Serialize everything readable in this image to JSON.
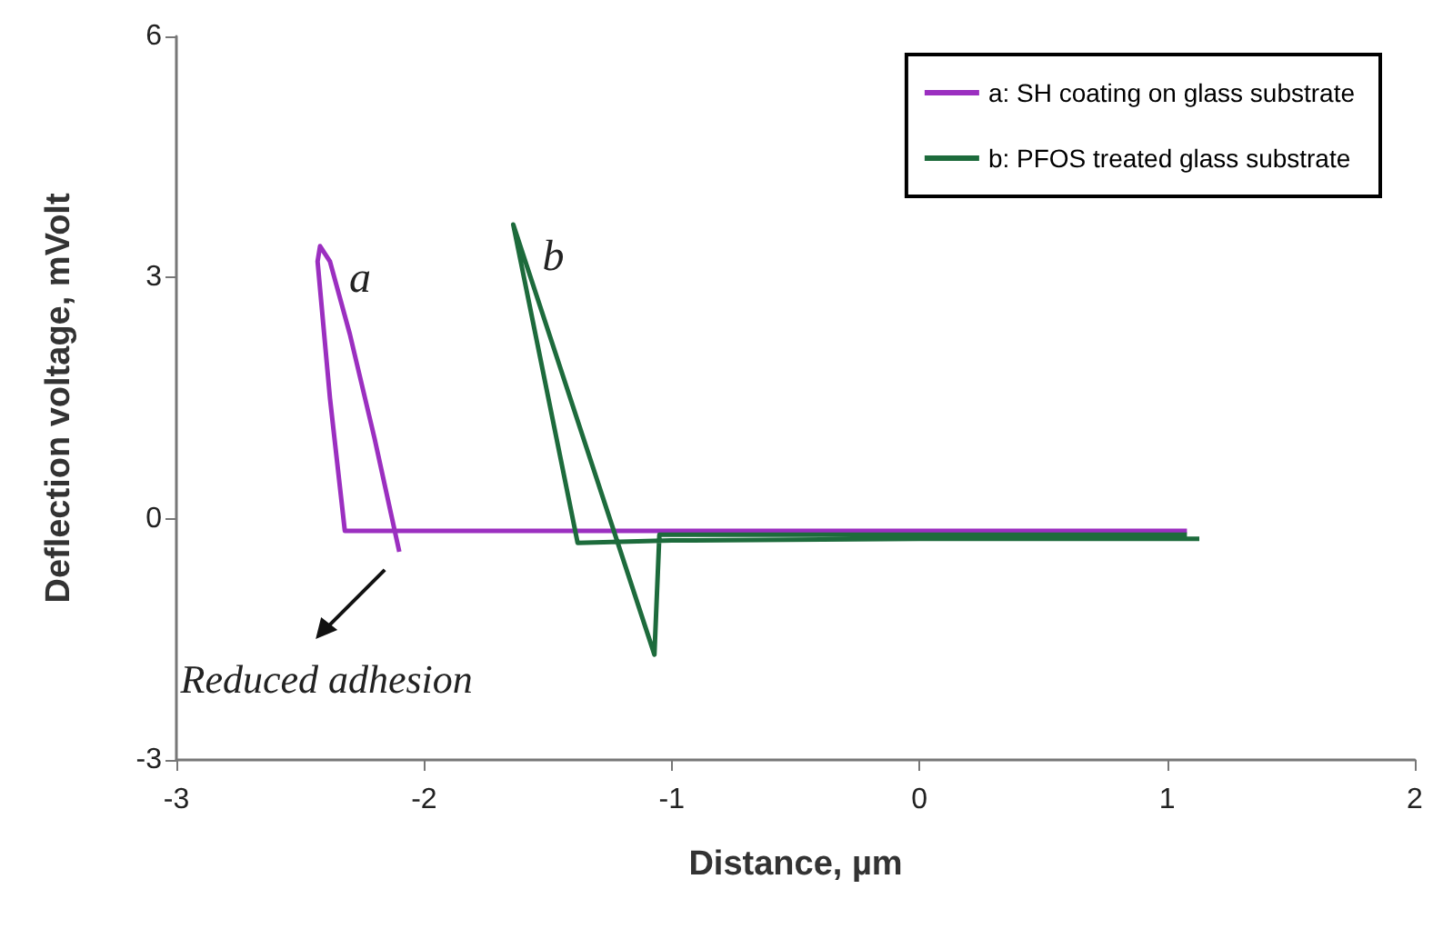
{
  "chart_data": {
    "type": "line",
    "xlabel": "Distance, µm",
    "ylabel": "Deflection voltage, mVolt",
    "xlim": [
      -3,
      2
    ],
    "xticks": [
      -3,
      -2,
      -1,
      0,
      1,
      2
    ],
    "ylim": [
      -3,
      6
    ],
    "yticks": [
      -3,
      0,
      3,
      6
    ],
    "grid": false,
    "legend": "top right",
    "marker": "none",
    "line_style": "solid",
    "series": [
      {
        "name": "a: SH coating on glass substrate",
        "color": "#9b2fc0",
        "x": [
          1.08,
          0.6,
          0,
          -1,
          -2,
          -2.32,
          -2.38,
          -2.43,
          -2.42,
          -2.38,
          -2.3,
          -2.2,
          -2.1
        ],
        "values": [
          -0.15,
          -0.15,
          -0.15,
          -0.15,
          -0.15,
          -0.15,
          1.5,
          3.2,
          3.39,
          3.2,
          2.3,
          1.0,
          -0.41
        ]
      },
      {
        "name": "b: PFOS treated glass substrate",
        "color": "#1d6b3c",
        "x": [
          1.13,
          0.5,
          0,
          -1,
          -1.38,
          -1.64,
          -1.07,
          -1.05,
          -0.5,
          0,
          1.08
        ],
        "values": [
          -0.25,
          -0.25,
          -0.25,
          -0.27,
          -0.3,
          3.66,
          -1.69,
          -0.2,
          -0.2,
          -0.2,
          -0.2
        ]
      }
    ],
    "annotations": [
      "a",
      "b",
      {
        "text": "Reduced adhesion",
        "x": -2.1,
        "y": -0.41
      }
    ]
  }
}
